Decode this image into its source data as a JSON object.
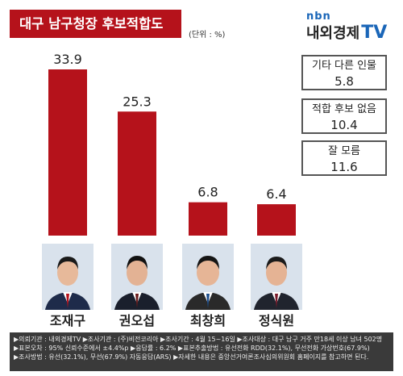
{
  "header": {
    "title": "대구 남구청장 후보적합도",
    "unit": "(단위 : %)"
  },
  "brand": {
    "top": "nbn",
    "name": "내외경제",
    "tv": "TV"
  },
  "side_boxes": [
    {
      "label": "기타 다른 인물",
      "value": "5.8"
    },
    {
      "label": "적합 후보 없음",
      "value": "10.4"
    },
    {
      "label": "잘 모름",
      "value": "11.6"
    }
  ],
  "candidates": [
    {
      "name": "조재구"
    },
    {
      "name": "권오섭"
    },
    {
      "name": "최창희"
    },
    {
      "name": "정식원"
    }
  ],
  "chart_data": {
    "type": "bar",
    "categories": [
      "조재구",
      "권오섭",
      "최창희",
      "정식원"
    ],
    "values": [
      33.9,
      25.3,
      6.8,
      6.4
    ],
    "value_labels": [
      "33.9",
      "25.3",
      "6.8",
      "6.4"
    ],
    "ylim": [
      0,
      40
    ],
    "color": "#b5121b",
    "grid": false,
    "legend": "none"
  },
  "footer": {
    "lines": [
      "▶의뢰기관 : 내외경제TV ▶조사기관 : (주)비전코리아 ▶조사기간 : 4월 15~16일 ▶조사대상 : 대구 남구 거주 만18세 이상 남녀 502명",
      "▶표본오차 : 95% 신뢰수준에서 ±4.4%p ▶응답률 : 6.2% ▶표본추출방법 : 유선전화 RDD(32.1%), 무선전화 가상번호(67.9%)",
      "▶조사방법 : 유선(32.1%), 무선(67.9%) 자동응답(ARS) ▶자세한 내용은 중앙선거여론조사심의위원회 홈페이지를 참고하면 된다."
    ]
  }
}
